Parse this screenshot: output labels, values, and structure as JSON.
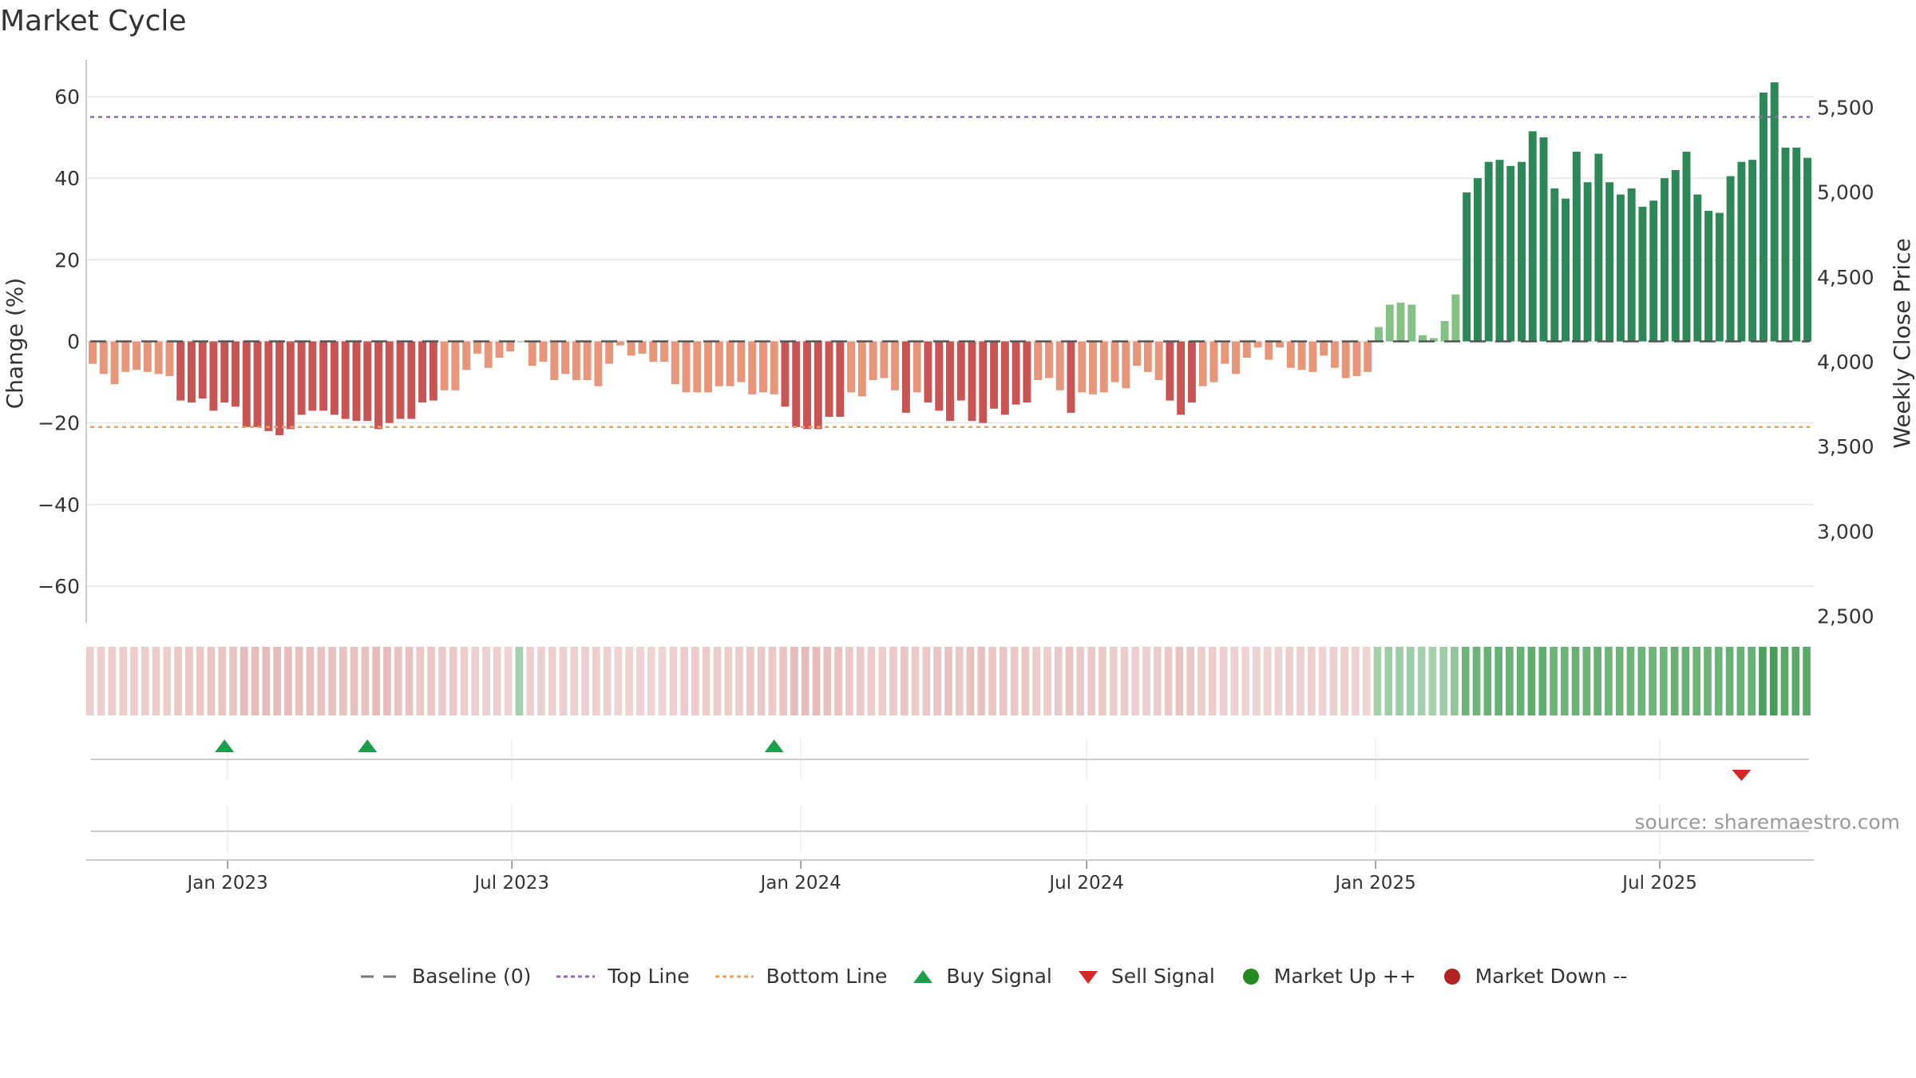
{
  "title": "Market Cycle",
  "source_note": "source: sharemaestro.com",
  "legend": [
    {
      "label": "Baseline (0)",
      "icon": "dash-line",
      "color": "#777777"
    },
    {
      "label": "Top Line",
      "icon": "dotted-line",
      "color": "#9467bd"
    },
    {
      "label": "Bottom Line",
      "icon": "dotted-line",
      "color": "#f0a050"
    },
    {
      "label": "Buy Signal",
      "icon": "triangle-up",
      "color": "#1e9e4a"
    },
    {
      "label": "Sell Signal",
      "icon": "triangle-down",
      "color": "#d62728"
    },
    {
      "label": "Market Up ++",
      "icon": "circle",
      "color": "#228b22"
    },
    {
      "label": "Market Down --",
      "icon": "circle",
      "color": "#b22222"
    }
  ],
  "colors": {
    "neg_dark": "#c95454",
    "neg_light": "#e8967a",
    "pos_dark": "#2e8757",
    "pos_light": "#84c184",
    "top_line": "#9467bd",
    "bottom_line": "#f0a050",
    "buy": "#1e9e4a",
    "sell": "#d62728"
  },
  "chart_data": {
    "type": "bar",
    "x_axis": {
      "ticks": [
        "Jan 2023",
        "Jul 2023",
        "Jan 2024",
        "Jul 2024",
        "Jan 2025",
        "Jul 2025"
      ],
      "tick_dates": [
        "2023-01-01",
        "2023-07-01",
        "2024-01-01",
        "2024-07-01",
        "2025-01-01",
        "2025-07-01"
      ]
    },
    "y_left": {
      "label": "Change (%)",
      "range": [
        -69,
        69
      ],
      "ticks": [
        60,
        40,
        20,
        0,
        -20,
        -40,
        -60
      ],
      "tick_labels": [
        "60",
        "40",
        "20",
        "0",
        "−20",
        "−40",
        "−60"
      ]
    },
    "y_right": {
      "label": "Weekly Close Price",
      "range": [
        2460,
        5780
      ],
      "ticks": [
        5500,
        5000,
        4500,
        4000,
        3500,
        3000,
        2500
      ],
      "tick_labels": [
        "5,500",
        "5,000",
        "4,500",
        "4,000",
        "3,500",
        "3,000",
        "2,500"
      ]
    },
    "top_line": 55,
    "bottom_line": -21,
    "baseline": 0,
    "start_date": "2022-10-07",
    "interval_days": 7,
    "values": [
      -5.5,
      -8,
      -10.5,
      -7.5,
      -7,
      -7.5,
      -8,
      -8.5,
      -14.5,
      -15,
      -14,
      -17,
      -15,
      -16,
      -21,
      -21,
      -22,
      -23,
      -21.5,
      -18,
      -17,
      -17,
      -18,
      -19,
      -19.5,
      -19.5,
      -21.5,
      -20,
      -19,
      -19,
      -15,
      -14.5,
      -12,
      -12,
      -7,
      -3,
      -6.5,
      -4,
      -2.5,
      0,
      -6,
      -5,
      -9.5,
      -8,
      -9.5,
      -9.5,
      -11,
      -5.5,
      -1,
      -3.5,
      -3,
      -5,
      -5,
      -10.5,
      -12.5,
      -12.5,
      -12.5,
      -11,
      -11,
      -10,
      -13,
      -12.5,
      -13,
      -16,
      -21,
      -21.5,
      -21.5,
      -18.5,
      -18.5,
      -12.5,
      -13.5,
      -9.5,
      -9,
      -12,
      -17.5,
      -12.5,
      -15,
      -17,
      -19.5,
      -14.5,
      -19.5,
      -20,
      -16.5,
      -18,
      -15.5,
      -15,
      -9.5,
      -9,
      -12,
      -17.5,
      -12.5,
      -13,
      -12.5,
      -10,
      -11.5,
      -6,
      -7.5,
      -9.5,
      -14.5,
      -18,
      -15,
      -11,
      -10,
      -5.5,
      -8,
      -4,
      -1.5,
      -4.5,
      -1.5,
      -6.5,
      -7,
      -7.5,
      -3.5,
      -6.5,
      -9,
      -8.5,
      -7.5,
      3.5,
      9,
      9.5,
      9,
      1.5,
      0.8,
      5,
      11.5,
      36.5,
      40,
      44,
      44.5,
      43,
      44,
      51.5,
      50,
      37.5,
      35,
      46.5,
      39,
      46,
      39,
      36,
      37.5,
      33,
      34.5,
      40,
      42,
      46.5,
      36,
      32,
      31.5,
      40.5,
      44,
      44.5,
      61,
      63.5,
      47.5,
      47.5,
      45
    ],
    "intensity": [
      0.35,
      0.35,
      0.4,
      0.4,
      0.4,
      0.4,
      0.4,
      0.4,
      0.5,
      0.5,
      0.5,
      0.55,
      0.55,
      0.55,
      0.7,
      0.7,
      0.7,
      0.7,
      0.7,
      0.6,
      0.6,
      0.6,
      0.6,
      0.6,
      0.6,
      0.6,
      0.7,
      0.7,
      0.6,
      0.6,
      0.5,
      0.5,
      0.45,
      0.45,
      0.4,
      0.35,
      0.35,
      0.35,
      0.3,
      0.3,
      0.35,
      0.35,
      0.35,
      0.35,
      0.35,
      0.35,
      0.35,
      0.35,
      0.3,
      0.3,
      0.3,
      0.3,
      0.3,
      0.35,
      0.4,
      0.4,
      0.4,
      0.4,
      0.4,
      0.4,
      0.45,
      0.45,
      0.45,
      0.55,
      0.7,
      0.7,
      0.7,
      0.6,
      0.6,
      0.45,
      0.45,
      0.4,
      0.4,
      0.45,
      0.55,
      0.45,
      0.5,
      0.55,
      0.6,
      0.5,
      0.6,
      0.6,
      0.55,
      0.55,
      0.5,
      0.5,
      0.4,
      0.4,
      0.45,
      0.55,
      0.45,
      0.45,
      0.45,
      0.4,
      0.4,
      0.35,
      0.35,
      0.4,
      0.5,
      0.6,
      0.5,
      0.4,
      0.4,
      0.35,
      0.35,
      0.3,
      0.3,
      0.3,
      0.3,
      0.35,
      0.35,
      0.35,
      0.3,
      0.35,
      0.35,
      0.35,
      0.3,
      0.3,
      0.35,
      0.35,
      0.35,
      0.3,
      0.3,
      0.35,
      0.45,
      0.7,
      0.7,
      0.75,
      0.75,
      0.75,
      0.75,
      0.8,
      0.8,
      0.7,
      0.7,
      0.75,
      0.7,
      0.75,
      0.7,
      0.7,
      0.7,
      0.7,
      0.7,
      0.7,
      0.75,
      0.75,
      0.7,
      0.7,
      0.7,
      0.75,
      0.75,
      0.75,
      0.95,
      1.0,
      0.85,
      0.85,
      0.85
    ],
    "buy_signals": [
      "2022-12-30",
      "2023-03-31",
      "2023-12-15"
    ],
    "sell_signals": [
      "2025-08-22"
    ]
  }
}
